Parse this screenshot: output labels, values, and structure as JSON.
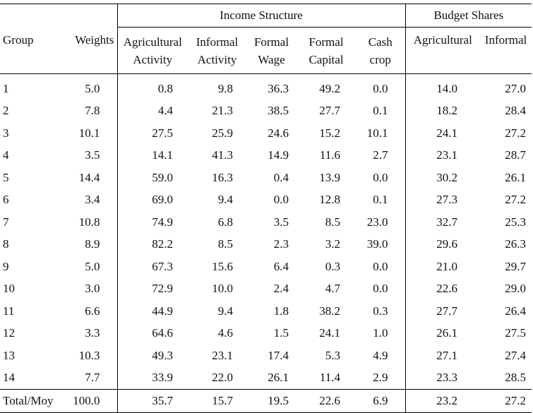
{
  "header": {
    "income_structure": "Income Structure",
    "budget_shares": "Budget Shares"
  },
  "columns": {
    "group": "Group",
    "weights": "Weights",
    "agri_1": "Agricultural",
    "agri_2": "Activity",
    "inf_1": "Informal",
    "inf_2": "Activity",
    "fw_1": "Formal",
    "fw_2": "Wage",
    "fc_1": "Formal",
    "fc_2": "Capital",
    "cc_1": "Cash",
    "cc_2": "crop",
    "b_agri": "Agricultural",
    "b_inf": "Informal"
  },
  "rows": [
    [
      "1",
      "5.0",
      "0.8",
      "9.8",
      "36.3",
      "49.2",
      "0.0",
      "14.0",
      "27.0"
    ],
    [
      "2",
      "7.8",
      "4.4",
      "21.3",
      "38.5",
      "27.7",
      "0.1",
      "18.2",
      "28.4"
    ],
    [
      "3",
      "10.1",
      "27.5",
      "25.9",
      "24.6",
      "15.2",
      "10.1",
      "24.1",
      "27.2"
    ],
    [
      "4",
      "3.5",
      "14.1",
      "41.3",
      "14.9",
      "11.6",
      "2.7",
      "23.1",
      "28.7"
    ],
    [
      "5",
      "14.4",
      "59.0",
      "16.3",
      "0.4",
      "13.9",
      "0.0",
      "30.2",
      "26.1"
    ],
    [
      "6",
      "3.4",
      "69.0",
      "9.4",
      "0.0",
      "12.8",
      "0.1",
      "27.3",
      "27.2"
    ],
    [
      "7",
      "10.8",
      "74.9",
      "6.8",
      "3.5",
      "8.5",
      "23.0",
      "32.7",
      "25.3"
    ],
    [
      "8",
      "8.9",
      "82.2",
      "8.5",
      "2.3",
      "3.2",
      "39.0",
      "29.6",
      "26.3"
    ],
    [
      "9",
      "5.0",
      "67.3",
      "15.6",
      "6.4",
      "0.3",
      "0.0",
      "21.0",
      "29.7"
    ],
    [
      "10",
      "3.0",
      "72.9",
      "10.0",
      "2.4",
      "4.7",
      "0.0",
      "22.6",
      "29.0"
    ],
    [
      "11",
      "6.6",
      "44.9",
      "9.4",
      "1.8",
      "38.2",
      "0.3",
      "27.7",
      "26.4"
    ],
    [
      "12",
      "3.3",
      "64.6",
      "4.6",
      "1.5",
      "24.1",
      "1.0",
      "26.1",
      "27.5"
    ],
    [
      "13",
      "10.3",
      "49.3",
      "23.1",
      "17.4",
      "5.3",
      "4.9",
      "27.1",
      "27.4"
    ],
    [
      "14",
      "7.7",
      "33.9",
      "22.0",
      "26.1",
      "11.4",
      "2.9",
      "23.3",
      "28.5"
    ]
  ],
  "total": [
    "Total/Moy",
    "100.0",
    "35.7",
    "15.7",
    "19.5",
    "22.6",
    "6.9",
    "23.2",
    "27.2"
  ]
}
